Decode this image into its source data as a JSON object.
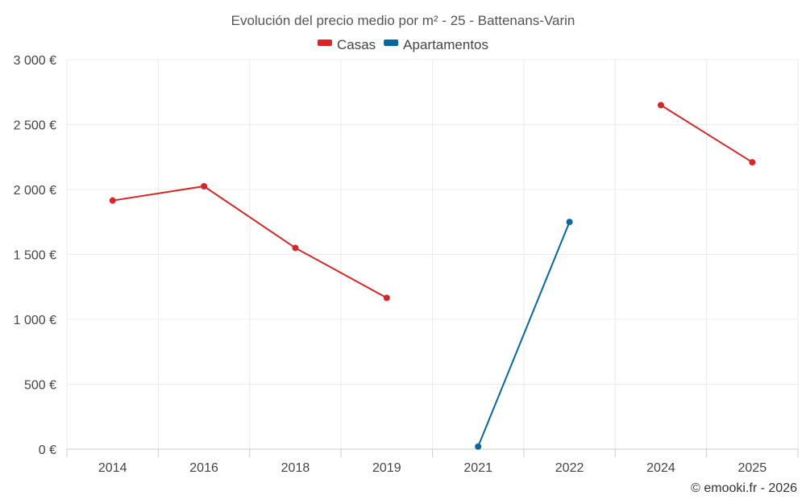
{
  "chart_data": {
    "type": "line",
    "title": "Evolución del precio medio por m² - 25 - Battenans-Varin",
    "categories": [
      "2014",
      "2016",
      "2018",
      "2019",
      "2021",
      "2022",
      "2024",
      "2025"
    ],
    "ylim": [
      0,
      3000
    ],
    "yticks": [
      0,
      500,
      1000,
      1500,
      2000,
      2500,
      3000
    ],
    "ytick_labels": [
      "0 €",
      "500 €",
      "1 000 €",
      "1 500 €",
      "2 000 €",
      "2 500 €",
      "3 000 €"
    ],
    "series": [
      {
        "name": "Casas",
        "color": "#d62728",
        "values": [
          1915,
          2025,
          1550,
          1165,
          null,
          null,
          2650,
          2210
        ]
      },
      {
        "name": "Apartamentos",
        "color": "#08679c",
        "values": [
          null,
          null,
          null,
          null,
          20,
          1750,
          null,
          null
        ]
      }
    ],
    "legend_position": "top-center",
    "grid": true,
    "credit": "© emooki.fr - 2026"
  }
}
